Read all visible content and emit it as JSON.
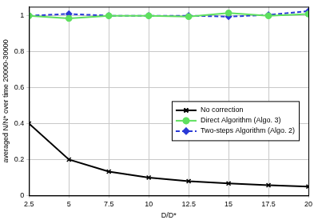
{
  "chart_data": {
    "type": "line",
    "x_label": "D/D*",
    "y_label": "averaged N/N* over time 20000-30000",
    "x": [
      2.5,
      5,
      7.5,
      10,
      12.5,
      15,
      17.5,
      20
    ],
    "series": [
      {
        "name": "No correction",
        "color": "#000000",
        "marker": "x",
        "line_style": "solid",
        "values": [
          0.4,
          0.2,
          0.133,
          0.1,
          0.08,
          0.067,
          0.057,
          0.05
        ]
      },
      {
        "name": "Direct Algorithm (Algo. 3)",
        "color": "#5fe05f",
        "marker": "circle",
        "line_style": "solid",
        "values": [
          1.0,
          0.985,
          1.0,
          1.0,
          0.995,
          1.015,
          1.0,
          1.01
        ]
      },
      {
        "name": "Two-steps Algorithm (Algo. 2)",
        "color": "#2a3ad6",
        "marker": "diamond",
        "line_style": "dashed",
        "values": [
          1.0,
          1.01,
          1.0,
          1.0,
          1.0,
          0.995,
          1.005,
          1.025
        ]
      }
    ],
    "xlim": [
      2.5,
      20
    ],
    "xticks": [
      2.5,
      5,
      7.5,
      10,
      12.5,
      15,
      17.5,
      20
    ],
    "ylim": [
      0,
      1.05
    ],
    "yticks": [
      0,
      0.2,
      0.4,
      0.6,
      0.8,
      1
    ],
    "grid": true,
    "legend": "right"
  }
}
